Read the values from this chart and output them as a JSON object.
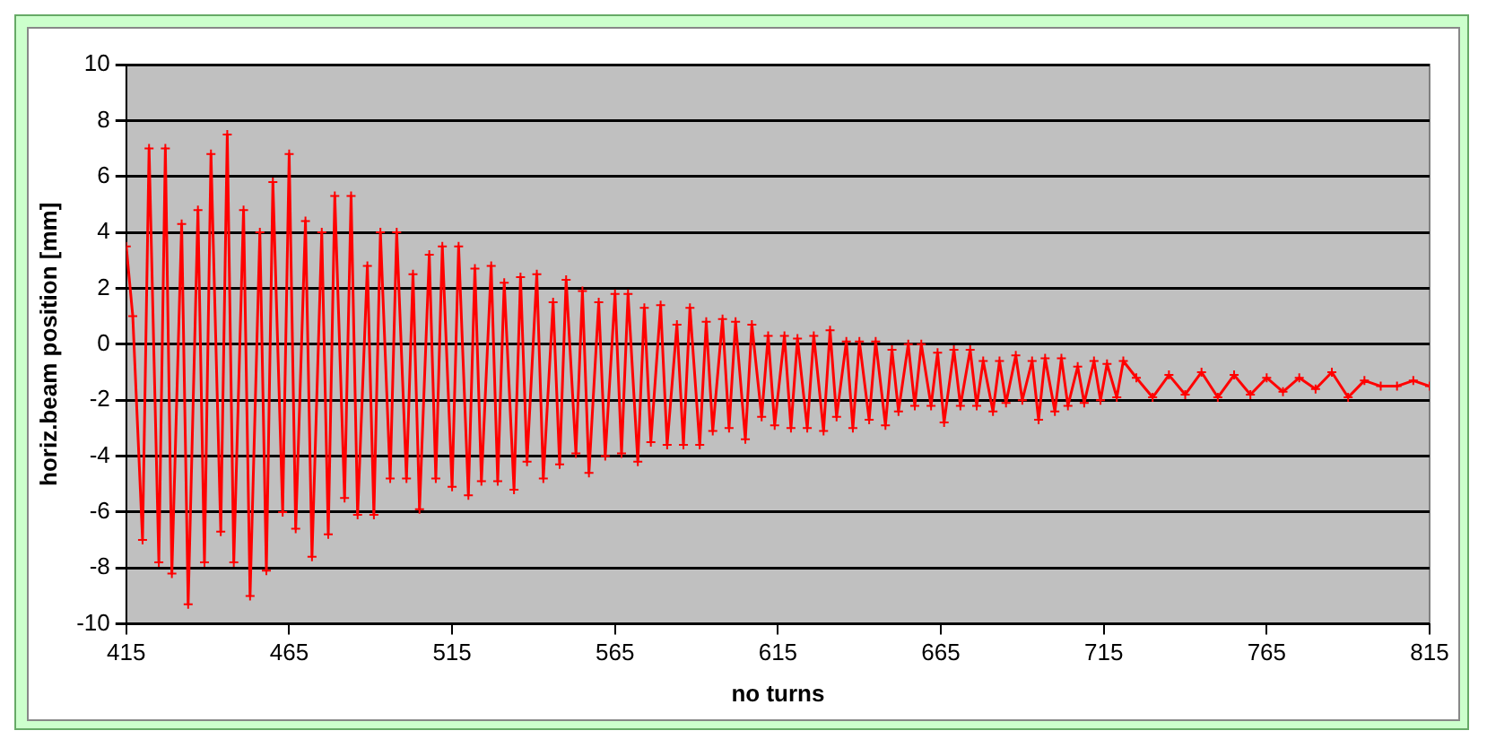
{
  "chart_data": {
    "type": "line",
    "xlabel": "no turns",
    "ylabel": "horiz.beam position [mm]",
    "xlim": [
      415,
      815
    ],
    "xticks": [
      415,
      465,
      515,
      565,
      615,
      665,
      715,
      765,
      815
    ],
    "ylim": [
      -10,
      10
    ],
    "yticks": [
      -10,
      -8,
      -6,
      -4,
      -2,
      0,
      2,
      4,
      6,
      8,
      10
    ],
    "grid": "y",
    "marker": "cross",
    "line_style": "solid",
    "series": [
      {
        "color": "#ff0000",
        "x": [
          415,
          417,
          420,
          422,
          425,
          427,
          429,
          432,
          434,
          437,
          439,
          441,
          444,
          446,
          448,
          451,
          453,
          456,
          458,
          460,
          463,
          465,
          467,
          470,
          472,
          475,
          477,
          479,
          482,
          484,
          486,
          489,
          491,
          493,
          496,
          498,
          501,
          503,
          505,
          508,
          510,
          512,
          515,
          517,
          520,
          522,
          524,
          527,
          529,
          531,
          534,
          536,
          538,
          541,
          543,
          546,
          548,
          550,
          553,
          555,
          557,
          560,
          562,
          565,
          567,
          569,
          572,
          574,
          576,
          579,
          581,
          584,
          586,
          588,
          591,
          593,
          595,
          598,
          600,
          602,
          605,
          607,
          610,
          612,
          614,
          617,
          619,
          621,
          624,
          626,
          629,
          631,
          633,
          636,
          638,
          640,
          643,
          645,
          648,
          650,
          652,
          655,
          657,
          659,
          662,
          664,
          666,
          669,
          671,
          674,
          676,
          678,
          681,
          683,
          685,
          688,
          690,
          693,
          695,
          697,
          700,
          702,
          704,
          707,
          709,
          712,
          714,
          716,
          719,
          721,
          725,
          730,
          735,
          740,
          745,
          750,
          755,
          760,
          765,
          770,
          775,
          780,
          785,
          790,
          795,
          800,
          805,
          810,
          815
        ],
        "values": [
          3.5,
          1.0,
          -7.0,
          7.0,
          -7.8,
          7.0,
          -8.2,
          4.3,
          -9.3,
          4.8,
          -7.8,
          6.8,
          -6.7,
          7.5,
          -7.8,
          4.8,
          -9.0,
          4.0,
          -8.1,
          5.8,
          -6.0,
          6.8,
          -6.6,
          4.4,
          -7.6,
          4.0,
          -6.8,
          5.3,
          -5.5,
          5.3,
          -6.1,
          2.8,
          -6.1,
          4.0,
          -4.8,
          4.0,
          -4.8,
          2.5,
          -5.9,
          3.2,
          -4.8,
          3.5,
          -5.1,
          3.5,
          -5.4,
          2.7,
          -4.9,
          2.8,
          -4.9,
          2.2,
          -5.2,
          2.4,
          -4.2,
          2.5,
          -4.8,
          1.5,
          -4.3,
          2.3,
          -3.9,
          1.9,
          -4.6,
          1.5,
          -4.0,
          1.8,
          -3.9,
          1.8,
          -4.2,
          1.3,
          -3.5,
          1.4,
          -3.6,
          0.7,
          -3.6,
          1.3,
          -3.6,
          0.8,
          -3.1,
          0.9,
          -3.0,
          0.8,
          -3.4,
          0.7,
          -2.6,
          0.3,
          -2.9,
          0.3,
          -3.0,
          0.2,
          -3.0,
          0.3,
          -3.1,
          0.5,
          -2.6,
          0.1,
          -3.0,
          0.1,
          -2.7,
          0.1,
          -2.9,
          -0.2,
          -2.4,
          0.0,
          -2.2,
          0.0,
          -2.2,
          -0.3,
          -2.8,
          -0.2,
          -2.2,
          -0.2,
          -2.2,
          -0.6,
          -2.4,
          -0.6,
          -2.1,
          -0.4,
          -2.0,
          -0.6,
          -2.7,
          -0.5,
          -2.4,
          -0.5,
          -2.2,
          -0.8,
          -2.1,
          -0.6,
          -2.0,
          -0.7,
          -1.9,
          -0.6,
          -1.2,
          -1.9,
          -1.1,
          -1.8,
          -1.0,
          -1.9,
          -1.1,
          -1.8,
          -1.2,
          -1.7,
          -1.2,
          -1.6,
          -1.0,
          -1.9,
          -1.3,
          -1.5,
          -1.5,
          -1.3,
          -1.5
        ]
      }
    ]
  }
}
